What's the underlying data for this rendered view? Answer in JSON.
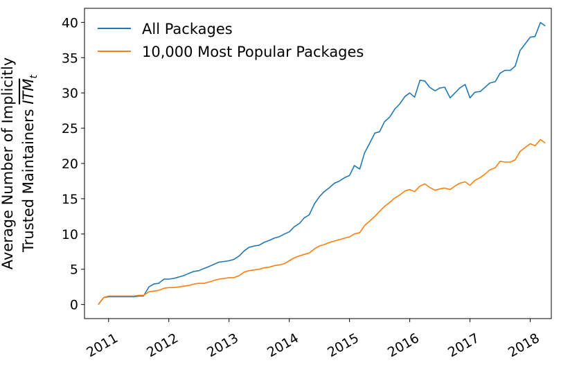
{
  "chart_data": {
    "type": "line",
    "ylabel_line1": "Average Number of Implicitly",
    "ylabel_line2_prefix": "Trusted Maintainers ",
    "ylabel_symbol": "ITM",
    "ylabel_subscript": "t",
    "xlim": [
      2010.6,
      2018.35
    ],
    "ylim": [
      -2,
      42
    ],
    "xticks": [
      {
        "value": 2011,
        "label": "2011"
      },
      {
        "value": 2012,
        "label": "2012"
      },
      {
        "value": 2013,
        "label": "2013"
      },
      {
        "value": 2014,
        "label": "2014"
      },
      {
        "value": 2015,
        "label": "2015"
      },
      {
        "value": 2016,
        "label": "2016"
      },
      {
        "value": 2017,
        "label": "2017"
      },
      {
        "value": 2018,
        "label": "2018"
      }
    ],
    "yticks": [
      {
        "value": 0,
        "label": "0"
      },
      {
        "value": 5,
        "label": "5"
      },
      {
        "value": 10,
        "label": "10"
      },
      {
        "value": 15,
        "label": "15"
      },
      {
        "value": 20,
        "label": "20"
      },
      {
        "value": 25,
        "label": "25"
      },
      {
        "value": 30,
        "label": "30"
      },
      {
        "value": 35,
        "label": "35"
      },
      {
        "value": 40,
        "label": "40"
      }
    ],
    "legend_position": "top-left",
    "series": [
      {
        "name": "All Packages",
        "color": "#1f77b4",
        "points": [
          [
            2010.83,
            0.0
          ],
          [
            2010.92,
            1.0
          ],
          [
            2011.0,
            1.1
          ],
          [
            2011.08,
            1.1
          ],
          [
            2011.17,
            1.1
          ],
          [
            2011.25,
            1.1
          ],
          [
            2011.33,
            1.1
          ],
          [
            2011.42,
            1.1
          ],
          [
            2011.5,
            1.2
          ],
          [
            2011.58,
            1.2
          ],
          [
            2011.67,
            2.5
          ],
          [
            2011.75,
            2.9
          ],
          [
            2011.83,
            3.0
          ],
          [
            2011.92,
            3.6
          ],
          [
            2012.0,
            3.6
          ],
          [
            2012.08,
            3.7
          ],
          [
            2012.17,
            3.9
          ],
          [
            2012.25,
            4.1
          ],
          [
            2012.33,
            4.4
          ],
          [
            2012.42,
            4.7
          ],
          [
            2012.5,
            4.8
          ],
          [
            2012.58,
            5.1
          ],
          [
            2012.67,
            5.4
          ],
          [
            2012.75,
            5.7
          ],
          [
            2012.83,
            6.0
          ],
          [
            2012.92,
            6.1
          ],
          [
            2013.0,
            6.2
          ],
          [
            2013.08,
            6.4
          ],
          [
            2013.17,
            6.9
          ],
          [
            2013.25,
            7.6
          ],
          [
            2013.33,
            8.1
          ],
          [
            2013.42,
            8.3
          ],
          [
            2013.5,
            8.4
          ],
          [
            2013.58,
            8.8
          ],
          [
            2013.67,
            9.1
          ],
          [
            2013.75,
            9.4
          ],
          [
            2013.83,
            9.6
          ],
          [
            2013.92,
            10.0
          ],
          [
            2014.0,
            10.3
          ],
          [
            2014.08,
            11.0
          ],
          [
            2014.17,
            11.5
          ],
          [
            2014.25,
            12.3
          ],
          [
            2014.33,
            12.7
          ],
          [
            2014.42,
            14.3
          ],
          [
            2014.5,
            15.3
          ],
          [
            2014.58,
            16.0
          ],
          [
            2014.67,
            16.6
          ],
          [
            2014.75,
            17.2
          ],
          [
            2014.83,
            17.5
          ],
          [
            2014.92,
            18.0
          ],
          [
            2015.0,
            18.3
          ],
          [
            2015.08,
            19.7
          ],
          [
            2015.17,
            19.2
          ],
          [
            2015.25,
            21.5
          ],
          [
            2015.33,
            22.8
          ],
          [
            2015.42,
            24.3
          ],
          [
            2015.5,
            24.5
          ],
          [
            2015.58,
            25.9
          ],
          [
            2015.67,
            26.6
          ],
          [
            2015.75,
            27.7
          ],
          [
            2015.83,
            28.4
          ],
          [
            2015.92,
            29.5
          ],
          [
            2016.0,
            30.0
          ],
          [
            2016.08,
            29.4
          ],
          [
            2016.17,
            31.8
          ],
          [
            2016.25,
            31.7
          ],
          [
            2016.33,
            30.8
          ],
          [
            2016.42,
            30.3
          ],
          [
            2016.5,
            30.7
          ],
          [
            2016.58,
            30.8
          ],
          [
            2016.67,
            29.3
          ],
          [
            2016.75,
            30.0
          ],
          [
            2016.83,
            30.7
          ],
          [
            2016.92,
            31.2
          ],
          [
            2017.0,
            29.3
          ],
          [
            2017.08,
            30.1
          ],
          [
            2017.17,
            30.2
          ],
          [
            2017.25,
            30.8
          ],
          [
            2017.33,
            31.4
          ],
          [
            2017.42,
            31.6
          ],
          [
            2017.5,
            32.8
          ],
          [
            2017.58,
            33.2
          ],
          [
            2017.67,
            33.2
          ],
          [
            2017.75,
            33.8
          ],
          [
            2017.83,
            36.0
          ],
          [
            2017.92,
            37.0
          ],
          [
            2018.0,
            37.9
          ],
          [
            2018.08,
            38.0
          ],
          [
            2018.17,
            40.0
          ],
          [
            2018.25,
            39.5
          ]
        ]
      },
      {
        "name": "10,000 Most Popular Packages",
        "color": "#ff7f0e",
        "points": [
          [
            2010.83,
            0.0
          ],
          [
            2010.92,
            1.0
          ],
          [
            2011.0,
            1.2
          ],
          [
            2011.08,
            1.2
          ],
          [
            2011.17,
            1.2
          ],
          [
            2011.25,
            1.2
          ],
          [
            2011.33,
            1.2
          ],
          [
            2011.42,
            1.2
          ],
          [
            2011.5,
            1.3
          ],
          [
            2011.58,
            1.3
          ],
          [
            2011.67,
            1.8
          ],
          [
            2011.75,
            1.9
          ],
          [
            2011.83,
            2.0
          ],
          [
            2011.92,
            2.3
          ],
          [
            2012.0,
            2.4
          ],
          [
            2012.08,
            2.4
          ],
          [
            2012.17,
            2.5
          ],
          [
            2012.25,
            2.6
          ],
          [
            2012.33,
            2.7
          ],
          [
            2012.42,
            2.9
          ],
          [
            2012.5,
            3.0
          ],
          [
            2012.58,
            3.0
          ],
          [
            2012.67,
            3.2
          ],
          [
            2012.75,
            3.4
          ],
          [
            2012.83,
            3.6
          ],
          [
            2012.92,
            3.7
          ],
          [
            2013.0,
            3.8
          ],
          [
            2013.08,
            3.8
          ],
          [
            2013.17,
            4.1
          ],
          [
            2013.25,
            4.6
          ],
          [
            2013.33,
            4.8
          ],
          [
            2013.42,
            4.9
          ],
          [
            2013.5,
            5.0
          ],
          [
            2013.58,
            5.2
          ],
          [
            2013.67,
            5.3
          ],
          [
            2013.75,
            5.5
          ],
          [
            2013.83,
            5.6
          ],
          [
            2013.92,
            5.8
          ],
          [
            2014.0,
            6.2
          ],
          [
            2014.08,
            6.6
          ],
          [
            2014.17,
            6.9
          ],
          [
            2014.25,
            7.1
          ],
          [
            2014.33,
            7.3
          ],
          [
            2014.42,
            7.9
          ],
          [
            2014.5,
            8.3
          ],
          [
            2014.58,
            8.5
          ],
          [
            2014.67,
            8.8
          ],
          [
            2014.75,
            9.0
          ],
          [
            2014.83,
            9.2
          ],
          [
            2014.92,
            9.4
          ],
          [
            2015.0,
            9.6
          ],
          [
            2015.08,
            10.0
          ],
          [
            2015.17,
            10.2
          ],
          [
            2015.25,
            11.2
          ],
          [
            2015.33,
            11.8
          ],
          [
            2015.42,
            12.5
          ],
          [
            2015.5,
            13.2
          ],
          [
            2015.58,
            13.9
          ],
          [
            2015.67,
            14.5
          ],
          [
            2015.75,
            15.1
          ],
          [
            2015.83,
            15.5
          ],
          [
            2015.92,
            16.1
          ],
          [
            2016.0,
            16.3
          ],
          [
            2016.08,
            16.0
          ],
          [
            2016.17,
            16.8
          ],
          [
            2016.25,
            17.1
          ],
          [
            2016.33,
            16.6
          ],
          [
            2016.42,
            16.2
          ],
          [
            2016.5,
            16.4
          ],
          [
            2016.58,
            16.5
          ],
          [
            2016.67,
            16.3
          ],
          [
            2016.75,
            16.8
          ],
          [
            2016.83,
            17.2
          ],
          [
            2016.92,
            17.4
          ],
          [
            2017.0,
            16.9
          ],
          [
            2017.08,
            17.6
          ],
          [
            2017.17,
            18.0
          ],
          [
            2017.25,
            18.5
          ],
          [
            2017.33,
            19.1
          ],
          [
            2017.42,
            19.4
          ],
          [
            2017.5,
            20.3
          ],
          [
            2017.58,
            20.2
          ],
          [
            2017.67,
            20.2
          ],
          [
            2017.75,
            20.5
          ],
          [
            2017.83,
            21.7
          ],
          [
            2017.92,
            22.3
          ],
          [
            2018.0,
            22.8
          ],
          [
            2018.08,
            22.5
          ],
          [
            2018.17,
            23.4
          ],
          [
            2018.25,
            22.9
          ]
        ]
      }
    ]
  }
}
